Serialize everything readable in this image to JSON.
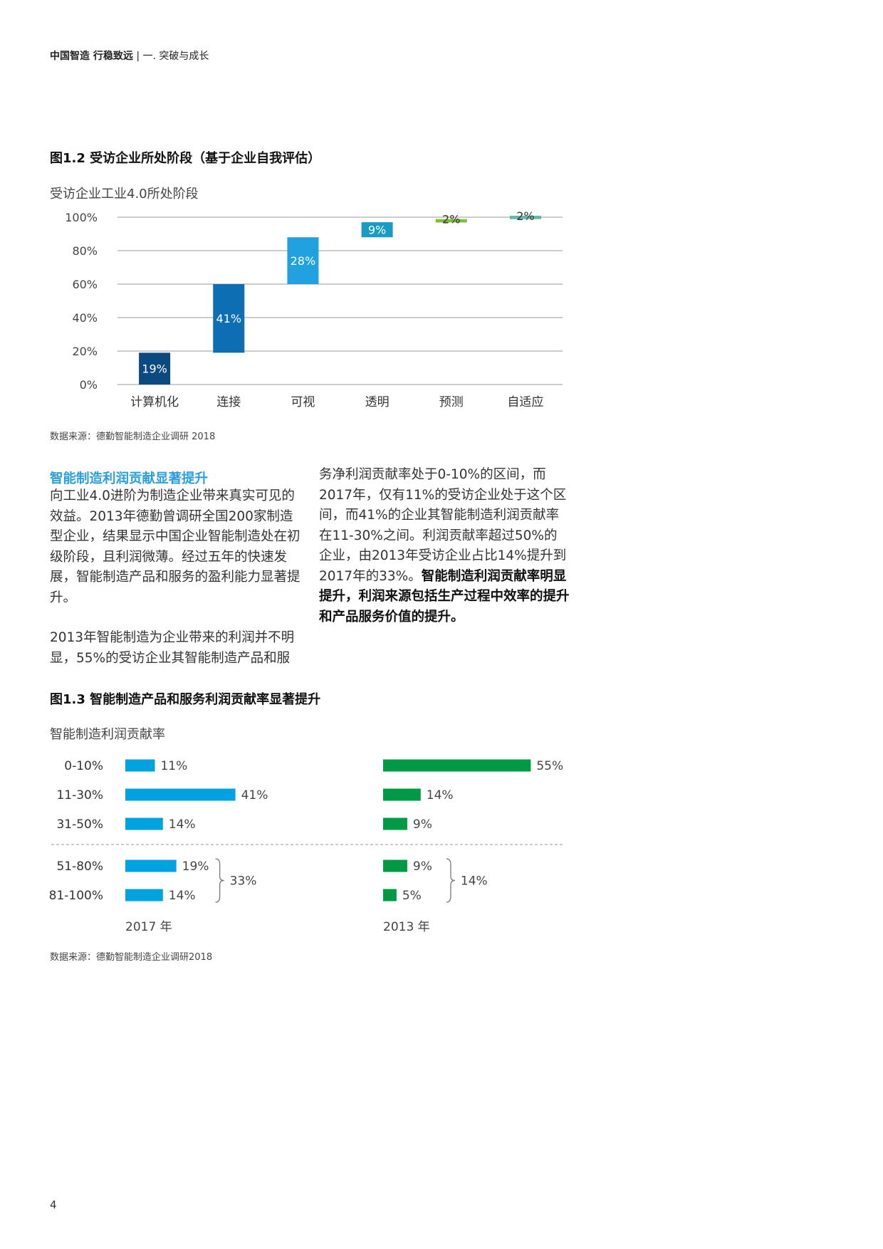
{
  "header": {
    "report": "中国智造 行稳致远",
    "section": "一. 突破与成长"
  },
  "figure12": {
    "title": "图1.2 受访企业所处阶段（基于企业自我评估）",
    "subtitle": "受访企业工业4.0所处阶段",
    "source": "数据来源：德勤智能制造企业调研 2018"
  },
  "chart_data": [
    {
      "type": "bar",
      "subtype": "waterfall",
      "categories": [
        "计算机化",
        "连接",
        "可视",
        "透明",
        "预测",
        "自适应"
      ],
      "values": [
        19,
        41,
        28,
        9,
        2,
        2
      ],
      "labels": [
        "19%",
        "41%",
        "28%",
        "9%",
        "2%",
        "2%"
      ],
      "colors": [
        "#0b4a80",
        "#0e6eb3",
        "#22a1e0",
        "#1a9bc4",
        "#7cbf2f",
        "#5fb8a8"
      ],
      "yticks": [
        "0%",
        "20%",
        "40%",
        "60%",
        "80%",
        "100%"
      ],
      "ylim": [
        0,
        100
      ],
      "grid": true
    },
    {
      "type": "bar",
      "orientation": "horizontal",
      "categories": [
        "0-10%",
        "11-30%",
        "31-50%",
        "51-80%",
        "81-100%"
      ],
      "series": [
        {
          "name": "2017 年",
          "values": [
            11,
            41,
            14,
            19,
            14
          ],
          "labels": [
            "11%",
            "41%",
            "14%",
            "19%",
            "14%"
          ],
          "color": "#00a3e0",
          "group_total": "33%"
        },
        {
          "name": "2013 年",
          "values": [
            55,
            14,
            9,
            9,
            5
          ],
          "labels": [
            "55%",
            "14%",
            "9%",
            "9%",
            "5%"
          ],
          "color": "#009a44",
          "group_total": "14%"
        }
      ]
    }
  ],
  "section": {
    "title": "智能制造利润贡献显著提升",
    "p1": "向工业4.0进阶为制造企业带来真实可见的效益。2013年德勤曾调研全国200家制造型企业，结果显示中国企业智能制造处在初级阶段，且利润微薄。经过五年的快速发展，智能制造产品和服务的盈利能力显著提升。",
    "p2": "2013年智能制造为企业带来的利润并不明显，55%的受访企业其智能制造产品和服务净利润贡献率处于0-10%的区间，而2017年，仅有11%的受访企业处于这个区间，而41%的企业其智能制造利润贡献率在11-30%之间。利润贡献率超过50%的企业，由2013年受访企业占比14%提升到2017年的33%。",
    "p2_bold": "智能制造利润贡献率明显提升，利润来源包括生产过程中效率的提升和产品服务价值的提升。"
  },
  "figure13": {
    "title": "图1.3 智能制造产品和服务利润贡献率显著提升",
    "subtitle": "智能制造利润贡献率",
    "source": "数据来源：德勤智能制造企业调研2018"
  },
  "page_number": "4"
}
